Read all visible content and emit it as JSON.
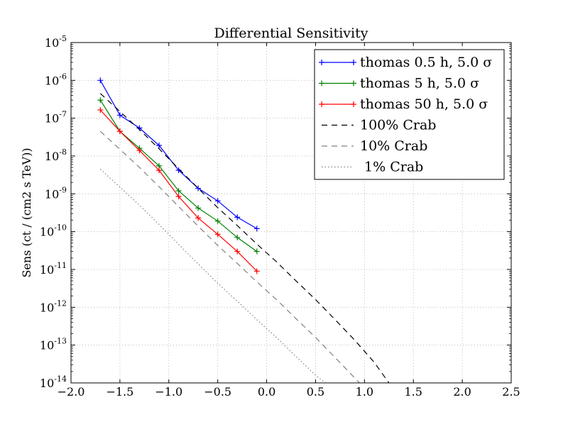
{
  "chart_data": {
    "type": "line",
    "title": "Differential Sensitivity",
    "xlabel": "",
    "ylabel": "Sens (ct / (cm2 s TeV))",
    "xlim": [
      -2.0,
      2.5
    ],
    "ylim": [
      1e-14,
      1e-05
    ],
    "yscale": "log",
    "grid": true,
    "legend_position": "top-right",
    "x_ticks": [
      {
        "value": -2.0,
        "label": "−2.0"
      },
      {
        "value": -1.5,
        "label": "−1.5"
      },
      {
        "value": -1.0,
        "label": "−1.0"
      },
      {
        "value": -0.5,
        "label": "−0.5"
      },
      {
        "value": 0.0,
        "label": "0.0"
      },
      {
        "value": 0.5,
        "label": "0.5"
      },
      {
        "value": 1.0,
        "label": "1.0"
      },
      {
        "value": 1.5,
        "label": "1.5"
      },
      {
        "value": 2.0,
        "label": "2.0"
      },
      {
        "value": 2.5,
        "label": "2.5"
      }
    ],
    "y_ticks": [
      {
        "value": 1e-14,
        "base": "10",
        "exp": "-14"
      },
      {
        "value": 1e-13,
        "base": "10",
        "exp": "-13"
      },
      {
        "value": 1e-12,
        "base": "10",
        "exp": "-12"
      },
      {
        "value": 1e-11,
        "base": "10",
        "exp": "-11"
      },
      {
        "value": 1e-10,
        "base": "10",
        "exp": "-10"
      },
      {
        "value": 1e-09,
        "base": "10",
        "exp": "-9"
      },
      {
        "value": 1e-08,
        "base": "10",
        "exp": "-8"
      },
      {
        "value": 1e-07,
        "base": "10",
        "exp": "-7"
      },
      {
        "value": 1e-06,
        "base": "10",
        "exp": "-6"
      },
      {
        "value": 1e-05,
        "base": "10",
        "exp": "-5"
      }
    ],
    "series": [
      {
        "name": "thomas 0.5 h, 5.0 σ",
        "color": "#0000ff",
        "style": "solid",
        "marker": "+",
        "x": [
          -1.7,
          -1.5,
          -1.3,
          -1.1,
          -0.9,
          -0.7,
          -0.5,
          -0.3,
          -0.1
        ],
        "y": [
          1e-06,
          1.2e-07,
          5.5e-08,
          1.9e-08,
          4.2e-09,
          1.4e-09,
          6.5e-10,
          2.4e-10,
          1.2e-10
        ]
      },
      {
        "name": "thomas 5 h, 5.0 σ",
        "color": "#008000",
        "style": "solid",
        "marker": "+",
        "x": [
          -1.7,
          -1.5,
          -1.3,
          -1.1,
          -0.9,
          -0.7,
          -0.5,
          -0.3,
          -0.1
        ],
        "y": [
          3e-07,
          4.5e-08,
          1.6e-08,
          5.5e-09,
          1.2e-09,
          4.2e-10,
          1.9e-10,
          7e-11,
          3e-11
        ]
      },
      {
        "name": "thomas 50 h, 5.0 σ",
        "color": "#ff0000",
        "style": "solid",
        "marker": "+",
        "x": [
          -1.7,
          -1.5,
          -1.3,
          -1.1,
          -0.9,
          -0.7,
          -0.5,
          -0.3,
          -0.1
        ],
        "y": [
          1.65e-07,
          4.5e-08,
          1.4e-08,
          4.2e-09,
          8.5e-10,
          2.3e-10,
          8.5e-11,
          3e-11,
          9e-12
        ]
      },
      {
        "name": "100% Crab",
        "color": "#000000",
        "style": "dashed",
        "marker": "",
        "x": [
          -1.7,
          -1.5,
          -1.3,
          -1.1,
          -0.9,
          -0.7,
          -0.5,
          -0.3,
          -0.1,
          0.1,
          0.3,
          0.5,
          0.7,
          0.9,
          1.1,
          1.25
        ],
        "y": [
          4.5e-07,
          1.5e-07,
          5e-08,
          1.55e-08,
          4.6e-09,
          1.4e-09,
          4.3e-10,
          1.45e-10,
          4.7e-11,
          1.6e-11,
          5e-12,
          1.6e-12,
          4.7e-13,
          1.35e-13,
          3.5e-14,
          1e-14
        ]
      },
      {
        "name": "10% Crab",
        "color": "#808080",
        "style": "dashed",
        "marker": "",
        "x": [
          -1.7,
          -1.5,
          -1.3,
          -1.1,
          -0.9,
          -0.7,
          -0.5,
          -0.3,
          -0.1,
          0.1,
          0.3,
          0.5,
          0.7,
          0.9,
          0.95
        ],
        "y": [
          4.5e-08,
          1.5e-08,
          5e-09,
          1.55e-09,
          4.6e-10,
          1.4e-10,
          4.3e-11,
          1.45e-11,
          4.7e-12,
          1.6e-12,
          5e-13,
          1.6e-13,
          4.7e-14,
          1.35e-14,
          1e-14
        ]
      },
      {
        "name": " 1% Crab",
        "color": "#808080",
        "style": "dotted",
        "marker": "",
        "x": [
          -1.7,
          -1.5,
          -1.3,
          -1.1,
          -0.9,
          -0.7,
          -0.5,
          -0.3,
          -0.1,
          0.1,
          0.3,
          0.5,
          0.6
        ],
        "y": [
          4.5e-09,
          1.5e-09,
          5e-10,
          1.55e-10,
          4.6e-11,
          1.4e-11,
          4.3e-12,
          1.45e-12,
          4.7e-13,
          1.6e-13,
          5e-14,
          1.6e-14,
          1e-14
        ]
      }
    ]
  }
}
